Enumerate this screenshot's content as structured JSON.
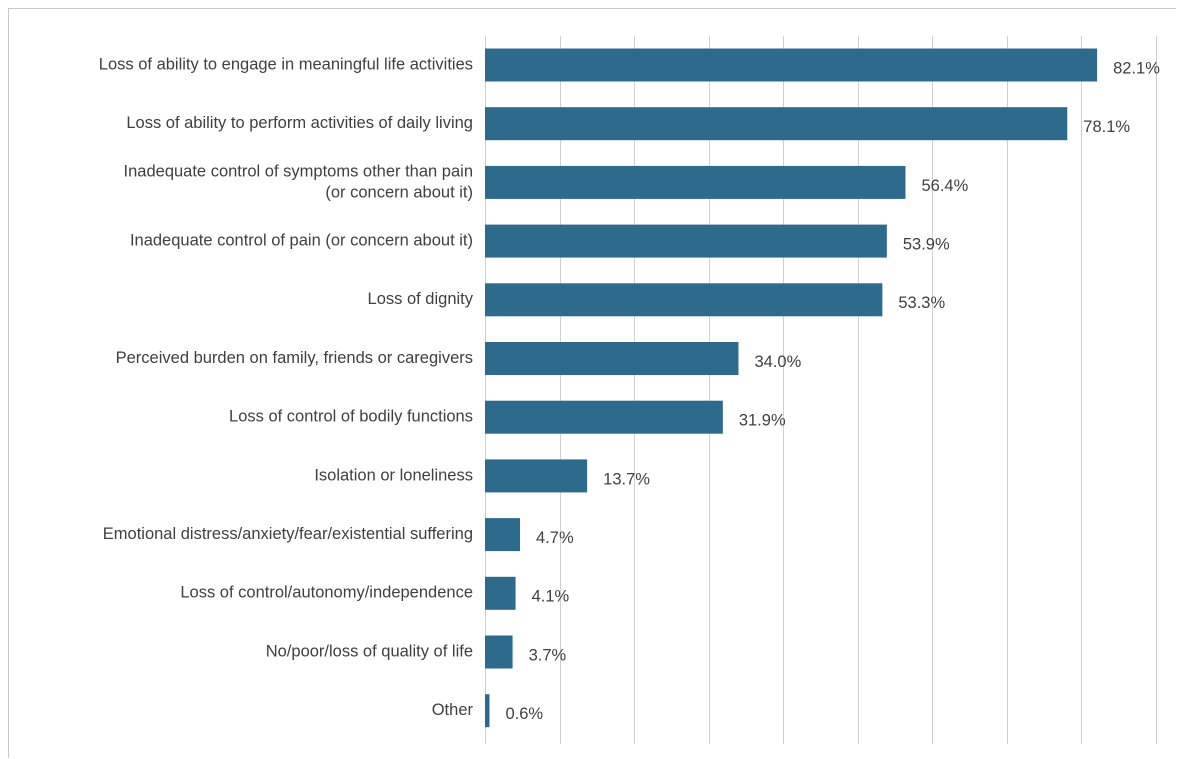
{
  "chart_data": {
    "type": "bar",
    "orientation": "horizontal",
    "categories": [
      [
        "Loss of ability to engage in meaningful life activities"
      ],
      [
        "Loss of ability to perform activities of daily living"
      ],
      [
        "Inadequate control of symptoms other than pain",
        "(or concern about it)"
      ],
      [
        "Inadequate control of pain (or concern about it)"
      ],
      [
        "Loss of dignity"
      ],
      [
        "Perceived burden on family, friends or caregivers"
      ],
      [
        "Loss of control of bodily functions"
      ],
      [
        "Isolation or loneliness"
      ],
      [
        "Emotional distress/anxiety/fear/existential suffering"
      ],
      [
        "Loss of control/autonomy/independence"
      ],
      [
        "No/poor/loss of quality of life"
      ],
      [
        "Other"
      ]
    ],
    "values": [
      82.1,
      78.1,
      56.4,
      53.9,
      53.3,
      34.0,
      31.9,
      13.7,
      4.7,
      4.1,
      3.7,
      0.6
    ],
    "value_labels": [
      "82.1%",
      "78.1%",
      "56.4%",
      "53.9%",
      "53.3%",
      "34.0%",
      "31.9%",
      "13.7%",
      "4.7%",
      "4.1%",
      "3.7%",
      "0.6%"
    ],
    "xlim": [
      0,
      90
    ],
    "x_gridlines": [
      0,
      10,
      20,
      30,
      40,
      50,
      60,
      70,
      80,
      90
    ],
    "grid": "vertical",
    "bar_color": "#2e6a8c",
    "grid_color": "#d0d0d0",
    "text_color": "#404040",
    "title": "",
    "xlabel": "",
    "ylabel": ""
  }
}
